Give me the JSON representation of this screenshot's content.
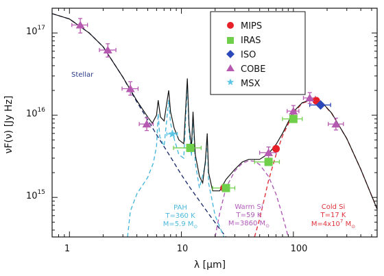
{
  "chart_data": {
    "type": "scatter",
    "title": "",
    "xlabel": "λ [μm]",
    "ylabel": "νF(ν) [Jy Hz]",
    "x_scale": "log",
    "y_scale": "log",
    "xlim": [
      0.7,
      560
    ],
    "ylim": [
      330000000000000.0,
      2e+17
    ],
    "grid": false,
    "legend_position": "top-right",
    "x_ticks": [
      {
        "value": 1,
        "label": "1"
      },
      {
        "value": 10,
        "label": "10"
      },
      {
        "value": 100,
        "label": "100"
      }
    ],
    "y_ticks": [
      {
        "value": 1000000000000000.0,
        "base": "10",
        "exp": "15"
      },
      {
        "value": 1e+16,
        "base": "10",
        "exp": "16"
      },
      {
        "value": 1e+17,
        "base": "10",
        "exp": "17"
      }
    ],
    "colors": {
      "mips": "#e8202a",
      "iras": "#6fcf4a",
      "iso": "#2a48b8",
      "cobe": "#b659b0",
      "msx": "#5cc6e6",
      "stellar_line": "#1f2f6e",
      "pah_line": "#4ab8dc",
      "warm_line": "#b05ab8",
      "cold_line": "#e0303a",
      "total_line": "#111111"
    },
    "series": [
      {
        "name": "MIPS",
        "marker": "circle",
        "points": [
          {
            "x": 24,
            "y": 1300000000000000.0
          },
          {
            "x": 70,
            "y": 3900000000000000.0
          },
          {
            "x": 160,
            "y": 1.5e+16
          }
        ]
      },
      {
        "name": "IRAS",
        "marker": "square",
        "points": [
          {
            "x": 12,
            "y": 4000000000000000.0,
            "xerr_lo": 8.5,
            "xerr_hi": 15
          },
          {
            "x": 25,
            "y": 1300000000000000.0,
            "xerr_lo": 19,
            "xerr_hi": 30
          },
          {
            "x": 60,
            "y": 2700000000000000.0,
            "xerr_lo": 45,
            "xerr_hi": 75
          },
          {
            "x": 100,
            "y": 9000000000000000.0,
            "xerr_lo": 80,
            "xerr_hi": 120
          }
        ]
      },
      {
        "name": "ISO",
        "marker": "diamond",
        "points": [
          {
            "x": 175,
            "y": 1.33e+16,
            "xerr_lo": 140,
            "xerr_hi": 215
          }
        ]
      },
      {
        "name": "COBE",
        "marker": "triangle",
        "points": [
          {
            "x": 1.25,
            "y": 1.25e+17,
            "xerr_lo": 1.05,
            "xerr_hi": 1.45,
            "yerr_lo": 1e+17,
            "yerr_hi": 1.5e+17
          },
          {
            "x": 2.2,
            "y": 6.2e+16,
            "xerr_lo": 1.85,
            "xerr_hi": 2.6,
            "yerr_lo": 5.1e+16,
            "yerr_hi": 7.4e+16
          },
          {
            "x": 3.5,
            "y": 2.1e+16,
            "xerr_lo": 2.95,
            "xerr_hi": 4.1,
            "yerr_lo": 1.75e+16,
            "yerr_hi": 2.55e+16
          },
          {
            "x": 4.9,
            "y": 7800000000000000.0,
            "xerr_lo": 4.2,
            "xerr_hi": 5.6,
            "yerr_lo": 6500000000000000.0,
            "yerr_hi": 9300000000000000.0
          },
          {
            "x": 60,
            "y": 3500000000000000.0,
            "xerr_lo": 50,
            "xerr_hi": 70,
            "yerr_lo": 3000000000000000.0,
            "yerr_hi": 4100000000000000.0
          },
          {
            "x": 100,
            "y": 1.12e+16,
            "xerr_lo": 88,
            "xerr_hi": 112,
            "yerr_lo": 9600000000000000.0,
            "yerr_hi": 1.31e+16
          },
          {
            "x": 140,
            "y": 1.62e+16,
            "xerr_lo": 123,
            "xerr_hi": 157,
            "yerr_lo": 1.39e+16,
            "yerr_hi": 1.88e+16
          },
          {
            "x": 240,
            "y": 7800000000000000.0,
            "xerr_lo": 205,
            "xerr_hi": 280,
            "yerr_lo": 6600000000000000.0,
            "yerr_hi": 9200000000000000.0
          }
        ]
      },
      {
        "name": "MSX",
        "marker": "star",
        "points": [
          {
            "x": 8.3,
            "y": 5900000000000000.0,
            "xerr_lo": 7.4,
            "xerr_hi": 9.2
          }
        ]
      }
    ],
    "models": [
      {
        "id": "stellar",
        "style": "dashed",
        "points": [
          [
            0.7,
            1.72e+17
          ],
          [
            1.0,
            1.48e+17
          ],
          [
            1.5,
            1e+17
          ],
          [
            2.0,
            6.8e+16
          ],
          [
            3.0,
            2.9e+16
          ],
          [
            4.0,
            1.45e+16
          ],
          [
            5.0,
            8800000000000000.0
          ],
          [
            6.0,
            5800000000000000.0
          ],
          [
            8.0,
            3100000000000000.0
          ],
          [
            10,
            1880000000000000.0
          ],
          [
            12,
            1300000000000000.0
          ],
          [
            15,
            850000000000000.0
          ],
          [
            18,
            600000000000000.0
          ],
          [
            21,
            450000000000000.0
          ],
          [
            25,
            330000000000000.0
          ]
        ]
      },
      {
        "id": "pah",
        "style": "dashed",
        "points": [
          [
            3.3,
            330000000000000.0
          ],
          [
            3.5,
            680000000000000.0
          ],
          [
            4.0,
            1100000000000000.0
          ],
          [
            5.0,
            1750000000000000.0
          ],
          [
            5.6,
            2600000000000000.0
          ],
          [
            6.0,
            4200000000000000.0
          ],
          [
            6.2,
            1.05e+16
          ],
          [
            6.4,
            5500000000000000.0
          ],
          [
            7.0,
            4200000000000000.0
          ],
          [
            7.7,
            1.52e+16
          ],
          [
            8.0,
            8000000000000000.0
          ],
          [
            8.6,
            5200000000000000.0
          ],
          [
            9.5,
            3300000000000000.0
          ],
          [
            10.5,
            3000000000000000.0
          ],
          [
            11.3,
            2.4e+16
          ],
          [
            11.7,
            6500000000000000.0
          ],
          [
            12.3,
            3200000000000000.0
          ],
          [
            12.7,
            1e+16
          ],
          [
            13.3,
            2600000000000000.0
          ],
          [
            14.5,
            1300000000000000.0
          ],
          [
            16.4,
            2500000000000000.0
          ],
          [
            17,
            5500000000000000.0
          ],
          [
            17.5,
            1500000000000000.0
          ],
          [
            20,
            600000000000000.0
          ],
          [
            24,
            330000000000000.0
          ]
        ]
      },
      {
        "id": "warm",
        "style": "dashed",
        "points": [
          [
            20,
            330000000000000.0
          ],
          [
            22,
            650000000000000.0
          ],
          [
            25,
            1300000000000000.0
          ],
          [
            30,
            2100000000000000.0
          ],
          [
            35,
            2600000000000000.0
          ],
          [
            40,
            2800000000000000.0
          ],
          [
            45,
            2750000000000000.0
          ],
          [
            50,
            2500000000000000.0
          ],
          [
            60,
            1800000000000000.0
          ],
          [
            70,
            1100000000000000.0
          ],
          [
            80,
            600000000000000.0
          ],
          [
            90,
            330000000000000.0
          ]
        ]
      },
      {
        "id": "cold",
        "style": "dashed",
        "points": [
          [
            45,
            330000000000000.0
          ],
          [
            50,
            550000000000000.0
          ],
          [
            60,
            1600000000000000.0
          ],
          [
            70,
            3300000000000000.0
          ],
          [
            80,
            5600000000000000.0
          ],
          [
            100,
            1.05e+16
          ],
          [
            120,
            1.4e+16
          ],
          [
            150,
            1.55e+16
          ],
          [
            180,
            1.42e+16
          ],
          [
            220,
            1.05e+16
          ],
          [
            300,
            5200000000000000.0
          ],
          [
            400,
            2200000000000000.0
          ],
          [
            560,
            720000000000000.0
          ]
        ]
      },
      {
        "id": "total",
        "style": "solid",
        "points": [
          [
            0.7,
            1.72e+17
          ],
          [
            1.0,
            1.48e+17
          ],
          [
            1.5,
            1e+17
          ],
          [
            2.0,
            6.8e+16
          ],
          [
            3.0,
            2.9e+16
          ],
          [
            4.0,
            1.5e+16
          ],
          [
            5.0,
            9500000000000000.0
          ],
          [
            5.5,
            8000000000000000.0
          ],
          [
            6.0,
            1e+16
          ],
          [
            6.2,
            1.52e+16
          ],
          [
            6.5,
            9500000000000000.0
          ],
          [
            7.0,
            8500000000000000.0
          ],
          [
            7.7,
            2e+16
          ],
          [
            8.0,
            1.1e+16
          ],
          [
            8.6,
            7000000000000000.0
          ],
          [
            9.5,
            5000000000000000.0
          ],
          [
            10.5,
            4500000000000000.0
          ],
          [
            11.3,
            2.8e+16
          ],
          [
            11.7,
            7500000000000000.0
          ],
          [
            12.3,
            4000000000000000.0
          ],
          [
            12.7,
            1.1e+16
          ],
          [
            13.3,
            3300000000000000.0
          ],
          [
            14.5,
            1800000000000000.0
          ],
          [
            15.5,
            1500000000000000.0
          ],
          [
            16.4,
            2800000000000000.0
          ],
          [
            17,
            6000000000000000.0
          ],
          [
            17.5,
            2000000000000000.0
          ],
          [
            19,
            1200000000000000.0
          ],
          [
            22,
            1200000000000000.0
          ],
          [
            25,
            1650000000000000.0
          ],
          [
            30,
            2200000000000000.0
          ],
          [
            35,
            2700000000000000.0
          ],
          [
            40,
            2900000000000000.0
          ],
          [
            50,
            2900000000000000.0
          ],
          [
            60,
            3400000000000000.0
          ],
          [
            70,
            4400000000000000.0
          ],
          [
            80,
            6000000000000000.0
          ],
          [
            100,
            1.1e+16
          ],
          [
            120,
            1.42e+16
          ],
          [
            150,
            1.56e+16
          ],
          [
            180,
            1.43e+16
          ],
          [
            220,
            1.06e+16
          ],
          [
            300,
            5200000000000000.0
          ],
          [
            400,
            2200000000000000.0
          ],
          [
            560,
            720000000000000.0
          ]
        ]
      }
    ],
    "annotations": {
      "stellar": "Stellar",
      "pah": {
        "line1": "PAH",
        "line2": "T=360 K",
        "line3_text": "M=5.9 M",
        "line3_sub": "⊙"
      },
      "warm": {
        "line1": "Warm Si",
        "line2": "T=59 K",
        "line3_text": "M=3860 M",
        "line3_sub": "⊙"
      },
      "cold": {
        "line1": "Cold Si",
        "line2": "T=17 K",
        "line3_text": "M=4x10",
        "line3_sup": "7",
        "line3_after": " M",
        "line3_sub": "⊙"
      }
    }
  }
}
